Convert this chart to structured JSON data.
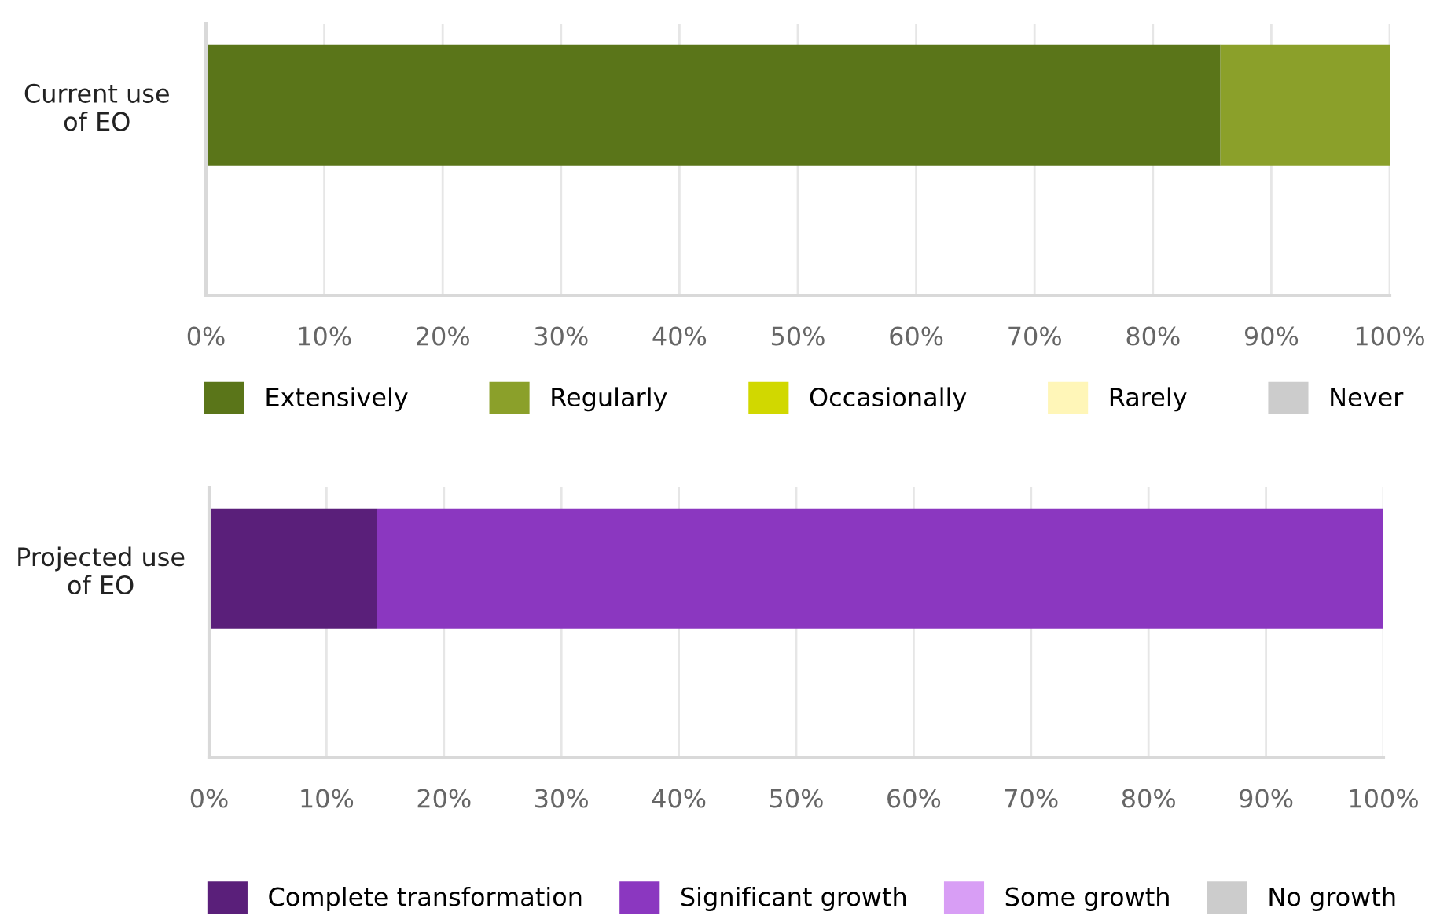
{
  "chart_data": [
    {
      "type": "bar",
      "orientation": "horizontal",
      "stacked": true,
      "categories": [
        "Current use\nof EO"
      ],
      "series": [
        {
          "name": "Extensively",
          "color": "#5a7519",
          "values": [
            85.7
          ]
        },
        {
          "name": "Regularly",
          "color": "#8ba02a",
          "values": [
            14.3
          ]
        },
        {
          "name": "Occasionally",
          "color": "#d1d800",
          "values": [
            0
          ]
        },
        {
          "name": "Rarely",
          "color": "#fff6b8",
          "values": [
            0
          ]
        },
        {
          "name": "Never",
          "color": "#cccccc",
          "values": [
            0
          ]
        }
      ],
      "xlim": [
        0,
        100
      ],
      "xticks": [
        {
          "value": 0,
          "label": "0%"
        },
        {
          "value": 10,
          "label": "10%"
        },
        {
          "value": 20,
          "label": "20%"
        },
        {
          "value": 30,
          "label": "30%"
        },
        {
          "value": 40,
          "label": "40%"
        },
        {
          "value": 50,
          "label": "50%"
        },
        {
          "value": 60,
          "label": "60%"
        },
        {
          "value": 70,
          "label": "70%"
        },
        {
          "value": 80,
          "label": "80%"
        },
        {
          "value": 90,
          "label": "90%"
        },
        {
          "value": 100,
          "label": "100%"
        }
      ],
      "grid": "x",
      "legend": "bottom"
    },
    {
      "type": "bar",
      "orientation": "horizontal",
      "stacked": true,
      "categories": [
        "Projected use\nof EO"
      ],
      "series": [
        {
          "name": "Complete transformation",
          "color": "#5a1f7a",
          "values": [
            14.3
          ]
        },
        {
          "name": "Significant growth",
          "color": "#8b37c0",
          "values": [
            85.7
          ]
        },
        {
          "name": "Some growth",
          "color": "#d89ef5",
          "values": [
            0
          ]
        },
        {
          "name": "No growth",
          "color": "#cccccc",
          "values": [
            0
          ]
        }
      ],
      "xlim": [
        0,
        100
      ],
      "xticks": [
        {
          "value": 0,
          "label": "0%"
        },
        {
          "value": 10,
          "label": "10%"
        },
        {
          "value": 20,
          "label": "20%"
        },
        {
          "value": 30,
          "label": "30%"
        },
        {
          "value": 40,
          "label": "40%"
        },
        {
          "value": 50,
          "label": "50%"
        },
        {
          "value": 60,
          "label": "60%"
        },
        {
          "value": 70,
          "label": "70%"
        },
        {
          "value": 80,
          "label": "80%"
        },
        {
          "value": 90,
          "label": "90%"
        },
        {
          "value": 100,
          "label": "100%"
        }
      ],
      "grid": "x",
      "legend": "bottom"
    }
  ]
}
